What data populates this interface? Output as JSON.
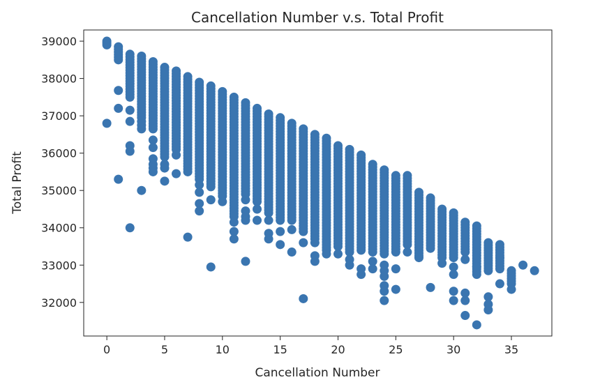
{
  "chart_data": {
    "type": "scatter",
    "title": "Cancellation Number v.s. Total Profit",
    "xlabel": "Cancellation Number",
    "ylabel": "Total Profit",
    "xlim": [
      -2,
      38.5
    ],
    "ylim": [
      31100,
      39300
    ],
    "x_ticks": [
      0,
      5,
      10,
      15,
      20,
      25,
      30,
      35
    ],
    "y_ticks": [
      32000,
      33000,
      34000,
      35000,
      36000,
      37000,
      38000,
      39000
    ],
    "grid": false,
    "marker_color": "#3a75b0",
    "columns": [
      {
        "x": 0,
        "band": [
          38900,
          39000
        ],
        "outliers": [
          36800
        ]
      },
      {
        "x": 1,
        "band": [
          38500,
          38850
        ],
        "outliers": [
          37680,
          37200,
          35300
        ]
      },
      {
        "x": 2,
        "band": [
          37500,
          38650
        ],
        "outliers": [
          37150,
          36850,
          36200,
          36050,
          34000
        ]
      },
      {
        "x": 3,
        "band": [
          36950,
          38600
        ],
        "outliers": [
          36850,
          36750,
          36650,
          35000
        ]
      },
      {
        "x": 4,
        "band": [
          36650,
          38450
        ],
        "outliers": [
          36350,
          36150,
          35850,
          35700,
          35600,
          35500
        ]
      },
      {
        "x": 5,
        "band": [
          35900,
          38300
        ],
        "outliers": [
          35700,
          35600,
          35250
        ]
      },
      {
        "x": 6,
        "band": [
          36100,
          38200
        ],
        "outliers": [
          35950,
          35450
        ]
      },
      {
        "x": 7,
        "band": [
          35500,
          38050
        ],
        "outliers": [
          33750
        ]
      },
      {
        "x": 8,
        "band": [
          35300,
          37900
        ],
        "outliers": [
          35150,
          34950,
          34650,
          34450
        ]
      },
      {
        "x": 9,
        "band": [
          35100,
          37800
        ],
        "outliers": [
          34750,
          32950
        ]
      },
      {
        "x": 10,
        "band": [
          34850,
          37650
        ],
        "outliers": [
          34700
        ]
      },
      {
        "x": 11,
        "band": [
          34300,
          37500
        ],
        "outliers": [
          34150,
          33900,
          33700
        ]
      },
      {
        "x": 12,
        "band": [
          34900,
          37350
        ],
        "outliers": [
          34750,
          34450,
          34300,
          34200,
          33100
        ]
      },
      {
        "x": 13,
        "band": [
          34700,
          37200
        ],
        "outliers": [
          34500,
          34200
        ]
      },
      {
        "x": 14,
        "band": [
          34400,
          37050
        ],
        "outliers": [
          34200,
          33850,
          33700
        ]
      },
      {
        "x": 15,
        "band": [
          34200,
          36950
        ],
        "outliers": [
          33900,
          33550
        ]
      },
      {
        "x": 16,
        "band": [
          34200,
          36800
        ],
        "outliers": [
          33950,
          33350
        ]
      },
      {
        "x": 17,
        "band": [
          33900,
          36650
        ],
        "outliers": [
          33600,
          32100
        ]
      },
      {
        "x": 18,
        "band": [
          33700,
          36500
        ],
        "outliers": [
          33600,
          33250,
          33100
        ]
      },
      {
        "x": 19,
        "band": [
          33400,
          36400
        ],
        "outliers": [
          33300
        ]
      },
      {
        "x": 20,
        "band": [
          33500,
          36200
        ],
        "outliers": [
          33300
        ]
      },
      {
        "x": 21,
        "band": [
          33350,
          36100
        ],
        "outliers": [
          33150,
          33000
        ]
      },
      {
        "x": 22,
        "band": [
          33400,
          35950
        ],
        "outliers": [
          32900,
          32750
        ]
      },
      {
        "x": 23,
        "band": [
          33350,
          35700
        ],
        "outliers": [
          33100,
          32900
        ]
      },
      {
        "x": 24,
        "band": [
          33300,
          35550
        ],
        "outliers": [
          33000,
          32850,
          32700,
          32450,
          32300,
          32050
        ]
      },
      {
        "x": 25,
        "band": [
          33350,
          35400
        ],
        "outliers": [
          32900,
          32350
        ]
      },
      {
        "x": 26,
        "band": [
          33550,
          35400
        ],
        "outliers": [
          33350
        ]
      },
      {
        "x": 27,
        "band": [
          33250,
          34950
        ],
        "outliers": [
          33200
        ]
      },
      {
        "x": 28,
        "band": [
          33450,
          34800
        ],
        "outliers": [
          32400
        ]
      },
      {
        "x": 29,
        "band": [
          33200,
          34500
        ],
        "outliers": [
          33050
        ]
      },
      {
        "x": 30,
        "band": [
          33200,
          34400
        ],
        "outliers": [
          32950,
          32750,
          32300,
          32050
        ]
      },
      {
        "x": 31,
        "band": [
          33350,
          34150
        ],
        "outliers": [
          33150,
          32250,
          32050,
          31650
        ]
      },
      {
        "x": 32,
        "band": [
          32750,
          34050
        ],
        "outliers": [
          32950,
          31400
        ]
      },
      {
        "x": 33,
        "band": [
          32850,
          33600
        ],
        "outliers": [
          32150,
          31950,
          31800
        ]
      },
      {
        "x": 34,
        "band": [
          32900,
          33550
        ],
        "outliers": [
          33200,
          32500
        ]
      },
      {
        "x": 35,
        "band": [
          32500,
          32850
        ],
        "outliers": [
          32350
        ]
      },
      {
        "x": 36,
        "band": [
          33000,
          33000
        ],
        "outliers": []
      },
      {
        "x": 37,
        "band": [
          32850,
          32850
        ],
        "outliers": []
      }
    ]
  }
}
